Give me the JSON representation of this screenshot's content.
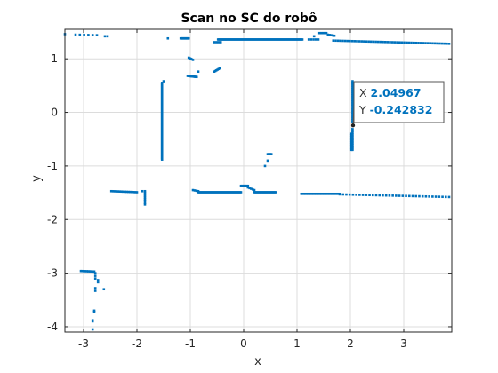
{
  "chart_data": {
    "type": "scatter",
    "title": "Scan no SC do robô",
    "xlabel": "x",
    "ylabel": "y",
    "xlim": [
      -3.35,
      3.9
    ],
    "ylim": [
      -4.1,
      1.55
    ],
    "xticks": [
      -3,
      -2,
      -1,
      0,
      1,
      2,
      3
    ],
    "yticks": [
      1,
      0,
      -1,
      -2,
      -3,
      -4
    ],
    "grid": true,
    "box": true,
    "marker_color": "#0072BD",
    "segments": [
      {
        "x0": -3.35,
        "y0": 1.46,
        "x1": -3.35,
        "y1": 1.46,
        "n": 1
      },
      {
        "x0": -3.15,
        "y0": 1.45,
        "x1": -2.75,
        "y1": 1.44,
        "n": 6
      },
      {
        "x0": -2.6,
        "y0": 1.42,
        "x1": -2.55,
        "y1": 1.42,
        "n": 2
      },
      {
        "x0": -1.42,
        "y0": 1.38,
        "x1": -1.42,
        "y1": 1.38,
        "n": 1
      },
      {
        "x0": -1.18,
        "y0": 1.38,
        "x1": -1.03,
        "y1": 1.38,
        "n": 14
      },
      {
        "x0": -1.03,
        "y0": 1.02,
        "x1": -0.95,
        "y1": 0.98,
        "n": 5
      },
      {
        "x0": -1.05,
        "y0": 0.68,
        "x1": -0.88,
        "y1": 0.66,
        "n": 12
      },
      {
        "x0": -0.85,
        "y0": 0.76,
        "x1": -0.85,
        "y1": 0.76,
        "n": 1
      },
      {
        "x0": -0.55,
        "y0": 0.76,
        "x1": -0.45,
        "y1": 0.82,
        "n": 6
      },
      {
        "x0": -0.55,
        "y0": 1.31,
        "x1": -0.43,
        "y1": 1.31,
        "n": 4
      },
      {
        "x0": -0.48,
        "y0": 1.36,
        "x1": 1.1,
        "y1": 1.36,
        "n": 90
      },
      {
        "x0": 1.22,
        "y0": 1.36,
        "x1": 1.4,
        "y1": 1.36,
        "n": 5
      },
      {
        "x0": 1.32,
        "y0": 1.42,
        "x1": 1.32,
        "y1": 1.42,
        "n": 1
      },
      {
        "x0": 1.42,
        "y0": 1.48,
        "x1": 1.55,
        "y1": 1.48,
        "n": 5
      },
      {
        "x0": 1.58,
        "y0": 1.45,
        "x1": 1.7,
        "y1": 1.43,
        "n": 5
      },
      {
        "x0": 1.68,
        "y0": 1.34,
        "x1": 3.85,
        "y1": 1.28,
        "n": 50
      },
      {
        "x0": -1.53,
        "y0": 0.55,
        "x1": -1.53,
        "y1": -0.88,
        "n": 80
      },
      {
        "x0": -1.5,
        "y0": 0.58,
        "x1": -1.5,
        "y1": 0.58,
        "n": 1
      },
      {
        "x0": 2.04,
        "y0": 0.58,
        "x1": 2.04,
        "y1": -0.7,
        "n": 45
      },
      {
        "x0": 2.02,
        "y0": -0.4,
        "x1": 2.02,
        "y1": -0.7,
        "n": 10
      },
      {
        "x0": 0.45,
        "y0": -0.78,
        "x1": 0.52,
        "y1": -0.78,
        "n": 5
      },
      {
        "x0": 0.45,
        "y0": -0.9,
        "x1": 0.45,
        "y1": -0.9,
        "n": 1
      },
      {
        "x0": 0.4,
        "y0": -1.0,
        "x1": 0.4,
        "y1": -1.0,
        "n": 1
      },
      {
        "x0": -2.48,
        "y0": -1.47,
        "x1": -2.0,
        "y1": -1.49,
        "n": 16
      },
      {
        "x0": -1.9,
        "y0": -1.47,
        "x1": -1.85,
        "y1": -1.47,
        "n": 2
      },
      {
        "x0": -1.85,
        "y0": -1.5,
        "x1": -1.85,
        "y1": -1.72,
        "n": 8
      },
      {
        "x0": -0.95,
        "y0": -1.45,
        "x1": -0.85,
        "y1": -1.47,
        "n": 4
      },
      {
        "x0": -0.85,
        "y0": -1.49,
        "x1": -0.05,
        "y1": -1.49,
        "n": 45
      },
      {
        "x0": -0.05,
        "y0": -1.37,
        "x1": 0.08,
        "y1": -1.37,
        "n": 6
      },
      {
        "x0": 0.08,
        "y0": -1.4,
        "x1": 0.2,
        "y1": -1.45,
        "n": 5
      },
      {
        "x0": 0.2,
        "y0": -1.49,
        "x1": 0.6,
        "y1": -1.49,
        "n": 22
      },
      {
        "x0": 1.08,
        "y0": -1.52,
        "x1": 1.8,
        "y1": -1.52,
        "n": 30
      },
      {
        "x0": 1.8,
        "y0": -1.53,
        "x1": 3.85,
        "y1": -1.58,
        "n": 34
      },
      {
        "x0": -3.05,
        "y0": -2.96,
        "x1": -2.8,
        "y1": -2.97,
        "n": 10
      },
      {
        "x0": -2.78,
        "y0": -3.0,
        "x1": -2.78,
        "y1": -3.1,
        "n": 3
      },
      {
        "x0": -2.73,
        "y0": -3.13,
        "x1": -2.73,
        "y1": -3.17,
        "n": 2
      },
      {
        "x0": -2.78,
        "y0": -3.28,
        "x1": -2.78,
        "y1": -3.33,
        "n": 2
      },
      {
        "x0": -2.62,
        "y0": -3.3,
        "x1": -2.62,
        "y1": -3.3,
        "n": 1
      },
      {
        "x0": -2.8,
        "y0": -3.7,
        "x1": -2.8,
        "y1": -3.72,
        "n": 2
      },
      {
        "x0": -2.83,
        "y0": -3.88,
        "x1": -2.83,
        "y1": -3.9,
        "n": 2
      },
      {
        "x0": -2.83,
        "y0": -4.05,
        "x1": -2.83,
        "y1": -4.05,
        "n": 1
      }
    ],
    "datatip": {
      "x_label": "X",
      "y_label": "Y",
      "x_value": "2.04967",
      "y_value": "-0.242832",
      "point": [
        2.04967,
        -0.242832
      ],
      "value_color": "#0072BD"
    }
  }
}
